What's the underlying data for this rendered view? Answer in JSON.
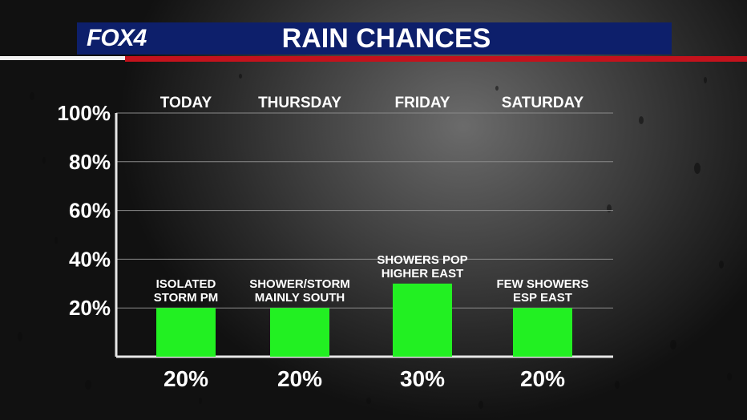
{
  "header": {
    "logo": "FOX4",
    "title": "RAIN CHANCES"
  },
  "colors": {
    "header_bg": "#0d1f6b",
    "accent_red": "#c4121c",
    "bar_green": "#22f022"
  },
  "chart_data": {
    "type": "bar",
    "title": "RAIN CHANCES",
    "categories": [
      "TODAY",
      "THURSDAY",
      "FRIDAY",
      "SATURDAY"
    ],
    "values": [
      20,
      20,
      30,
      20
    ],
    "value_labels": [
      "20%",
      "20%",
      "30%",
      "20%"
    ],
    "notes": [
      [
        "ISOLATED",
        "STORM PM"
      ],
      [
        "SHOWER/STORM",
        "MAINLY SOUTH"
      ],
      [
        "SHOWERS POP",
        "HIGHER EAST"
      ],
      [
        "FEW SHOWERS",
        "ESP EAST"
      ]
    ],
    "yticks": [
      "100%",
      "80%",
      "60%",
      "40%",
      "20%"
    ],
    "ylim": [
      0,
      100
    ],
    "grid": true
  }
}
